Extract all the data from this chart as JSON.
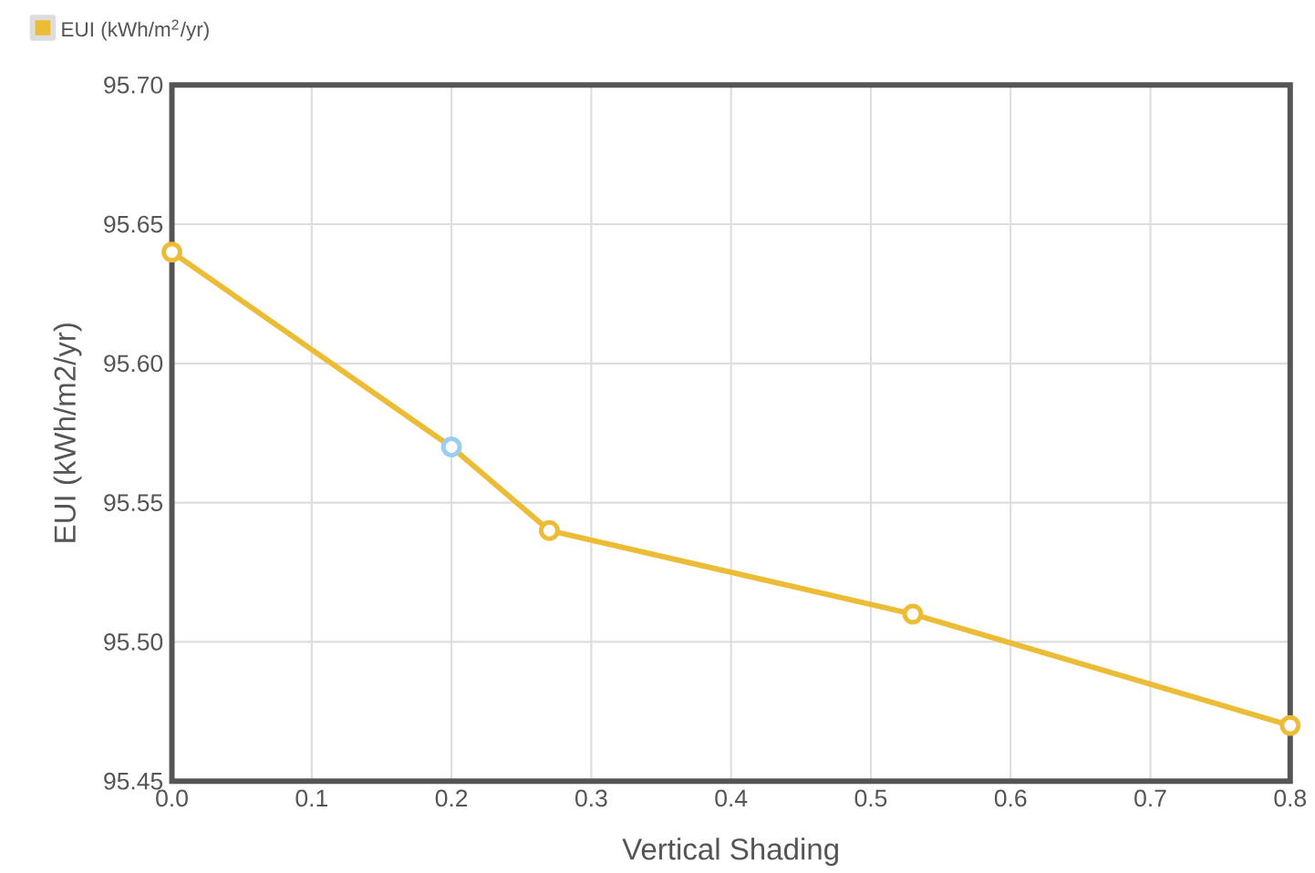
{
  "chart_data": {
    "type": "line",
    "xlabel": "Vertical Shading",
    "ylabel": "EUI (kWh/m2/yr)",
    "x": [
      0,
      0.2,
      0.27,
      0.53,
      0.8
    ],
    "series": [
      {
        "name": "EUI (kWh/m$^{2}$/yr)",
        "color": "#ecbc36",
        "colors": [
          "#ecbc36",
          "#9ccdf0",
          "#ecbc36",
          "#ecbc36",
          "#ecbc36"
        ],
        "values": [
          95.64,
          95.57,
          95.54,
          95.51,
          95.47
        ]
      }
    ],
    "xlim": [
      0,
      0.8
    ],
    "ylim": [
      95.45,
      95.7
    ],
    "xticks": [
      {
        "value": 0,
        "label": "0.0"
      },
      0.1,
      0.2,
      0.3,
      0.4,
      0.5,
      0.6,
      0.7,
      0.8
    ],
    "yticks": [
      95.45,
      {
        "value": 95.5,
        "label": "95.50"
      },
      95.55,
      {
        "value": 95.6,
        "label": "95.60"
      },
      95.65,
      {
        "value": 95.7,
        "label": "95.70"
      }
    ],
    "grid": true,
    "legend": "top left",
    "marker": "circle",
    "line_style": "solid"
  }
}
